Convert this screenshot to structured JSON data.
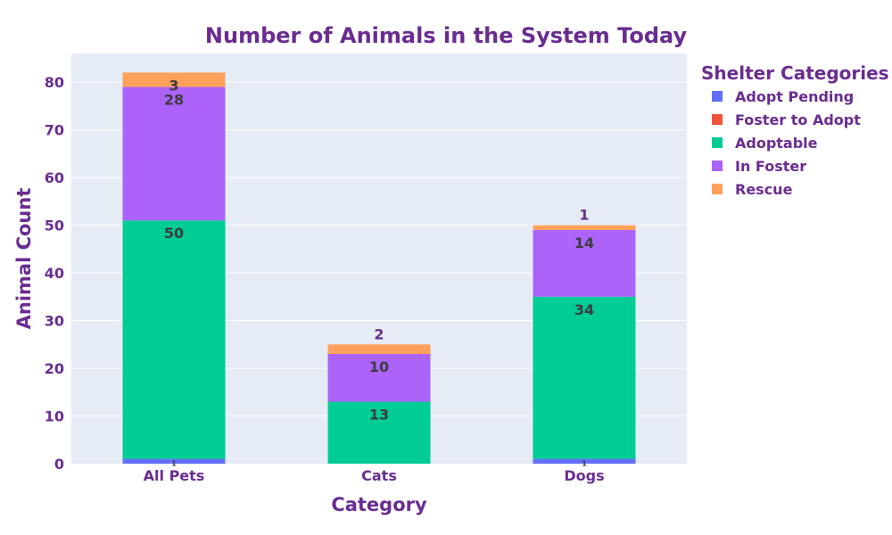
{
  "chart_data": {
    "type": "bar",
    "stacked": true,
    "title": "Number of Animals in the System Today",
    "xlabel": "Category",
    "ylabel": "Animal Count",
    "ylim": [
      0,
      86
    ],
    "yticks": [
      0,
      10,
      20,
      30,
      40,
      50,
      60,
      70,
      80
    ],
    "grid": true,
    "categories": [
      "All Pets",
      "Cats",
      "Dogs"
    ],
    "legend": {
      "title": "Shelter Categories",
      "placement": "top-right"
    },
    "series": [
      {
        "name": "Adopt Pending",
        "color": "#636efa",
        "values": [
          1,
          0,
          1
        ],
        "labels": [
          "1",
          "",
          "1"
        ]
      },
      {
        "name": "Foster to Adopt",
        "color": "#ef553b",
        "values": [
          0,
          0,
          0
        ],
        "labels": [
          "",
          "",
          ""
        ]
      },
      {
        "name": "Adoptable",
        "color": "#00cc96",
        "values": [
          50,
          13,
          34
        ],
        "labels": [
          "50",
          "13",
          "34"
        ]
      },
      {
        "name": "In Foster",
        "color": "#ab63fa",
        "values": [
          28,
          10,
          14
        ],
        "labels": [
          "28",
          "10",
          "14"
        ]
      },
      {
        "name": "Rescue",
        "color": "#ffa15a",
        "values": [
          3,
          2,
          1
        ],
        "labels": [
          "3",
          "2",
          "1"
        ]
      }
    ]
  }
}
